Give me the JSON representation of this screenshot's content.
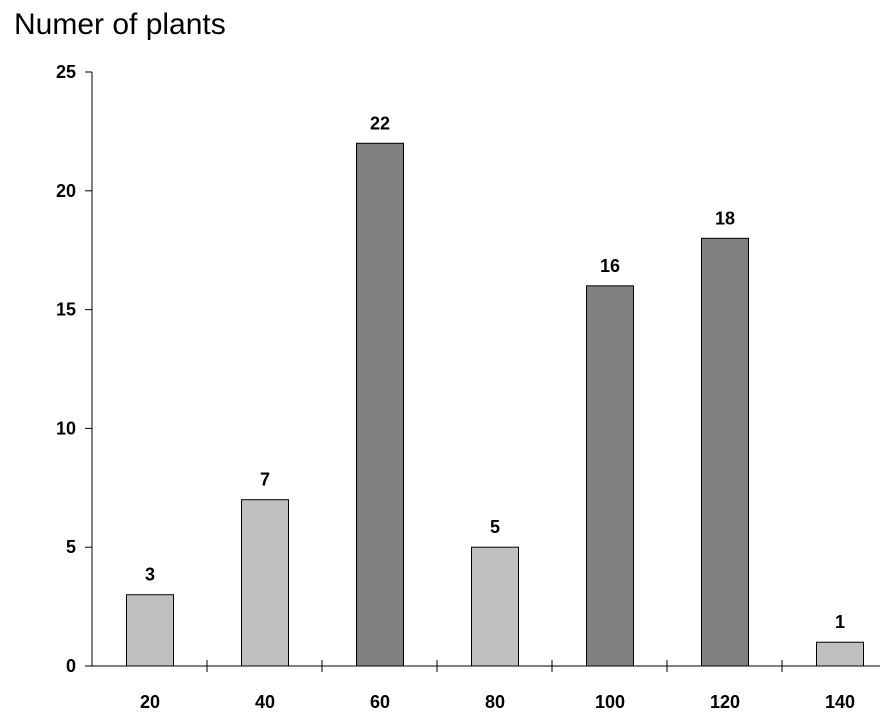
{
  "chart_data": {
    "type": "bar",
    "title": "Numer of plants",
    "xlabel": "",
    "ylabel": "",
    "categories": [
      "20",
      "40",
      "60",
      "80",
      "100",
      "120",
      "140"
    ],
    "values": [
      3,
      7,
      22,
      5,
      16,
      18,
      1
    ],
    "bar_colors": [
      "#c0c0c0",
      "#c0c0c0",
      "#808080",
      "#c0c0c0",
      "#808080",
      "#808080",
      "#c0c0c0"
    ],
    "ylim": [
      0,
      25
    ],
    "yticks": [
      0,
      5,
      10,
      15,
      20,
      25
    ],
    "grid": false,
    "legend": "none"
  }
}
